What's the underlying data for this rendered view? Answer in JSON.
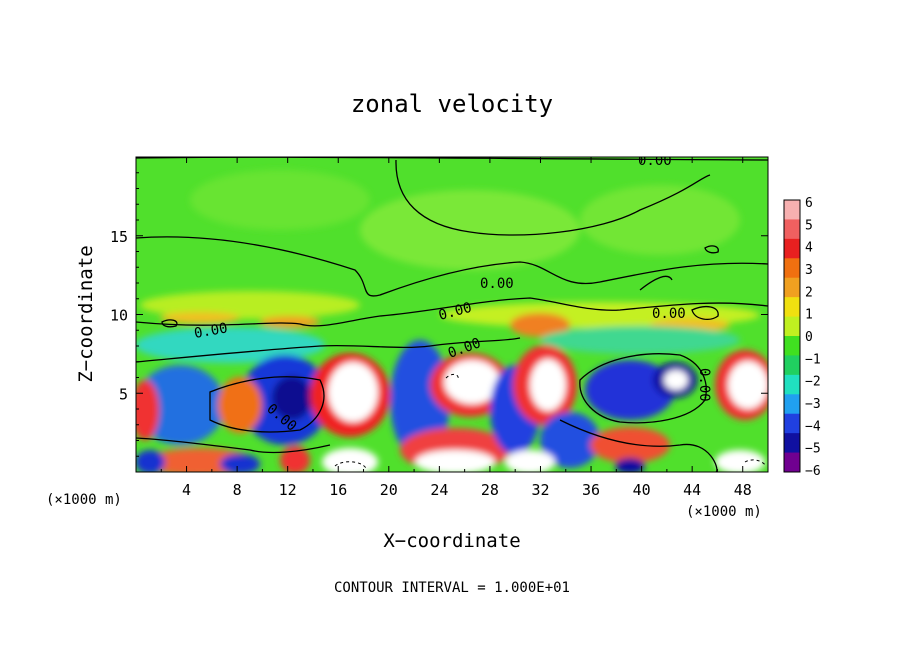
{
  "chart_data": {
    "type": "heatmap",
    "title": "zonal velocity",
    "xlabel": "X−coordinate",
    "ylabel": "Z−coordinate",
    "x_unit_label": "(×1000 m)",
    "x_unit_label_right": "(×1000 m)",
    "x_ticks": [
      4,
      8,
      12,
      16,
      20,
      24,
      28,
      32,
      36,
      40,
      44,
      48
    ],
    "y_ticks": [
      5,
      10,
      15
    ],
    "xlim": [
      0,
      50
    ],
    "ylim": [
      0,
      20
    ],
    "colorbar": {
      "ticks": [
        "6",
        "5",
        "4",
        "3",
        "2",
        "1",
        "0",
        "−1",
        "−2",
        "−3",
        "−4",
        "−5",
        "−6"
      ],
      "range": [
        -6,
        6
      ],
      "colors": [
        "#f7b0b0",
        "#f06060",
        "#e82020",
        "#f07010",
        "#f0a020",
        "#f0e010",
        "#c0f020",
        "#40e020",
        "#20d060",
        "#20e0c0",
        "#20a0f0",
        "#2040e0",
        "#1010a0",
        "#700090"
      ]
    },
    "contour_labels": [
      "0.00",
      "0.00",
      "0.00",
      "0.00",
      "0.00",
      "0.00",
      "0.00",
      "0.00"
    ],
    "footer": "CONTOUR INTERVAL = 1.000E+01"
  }
}
